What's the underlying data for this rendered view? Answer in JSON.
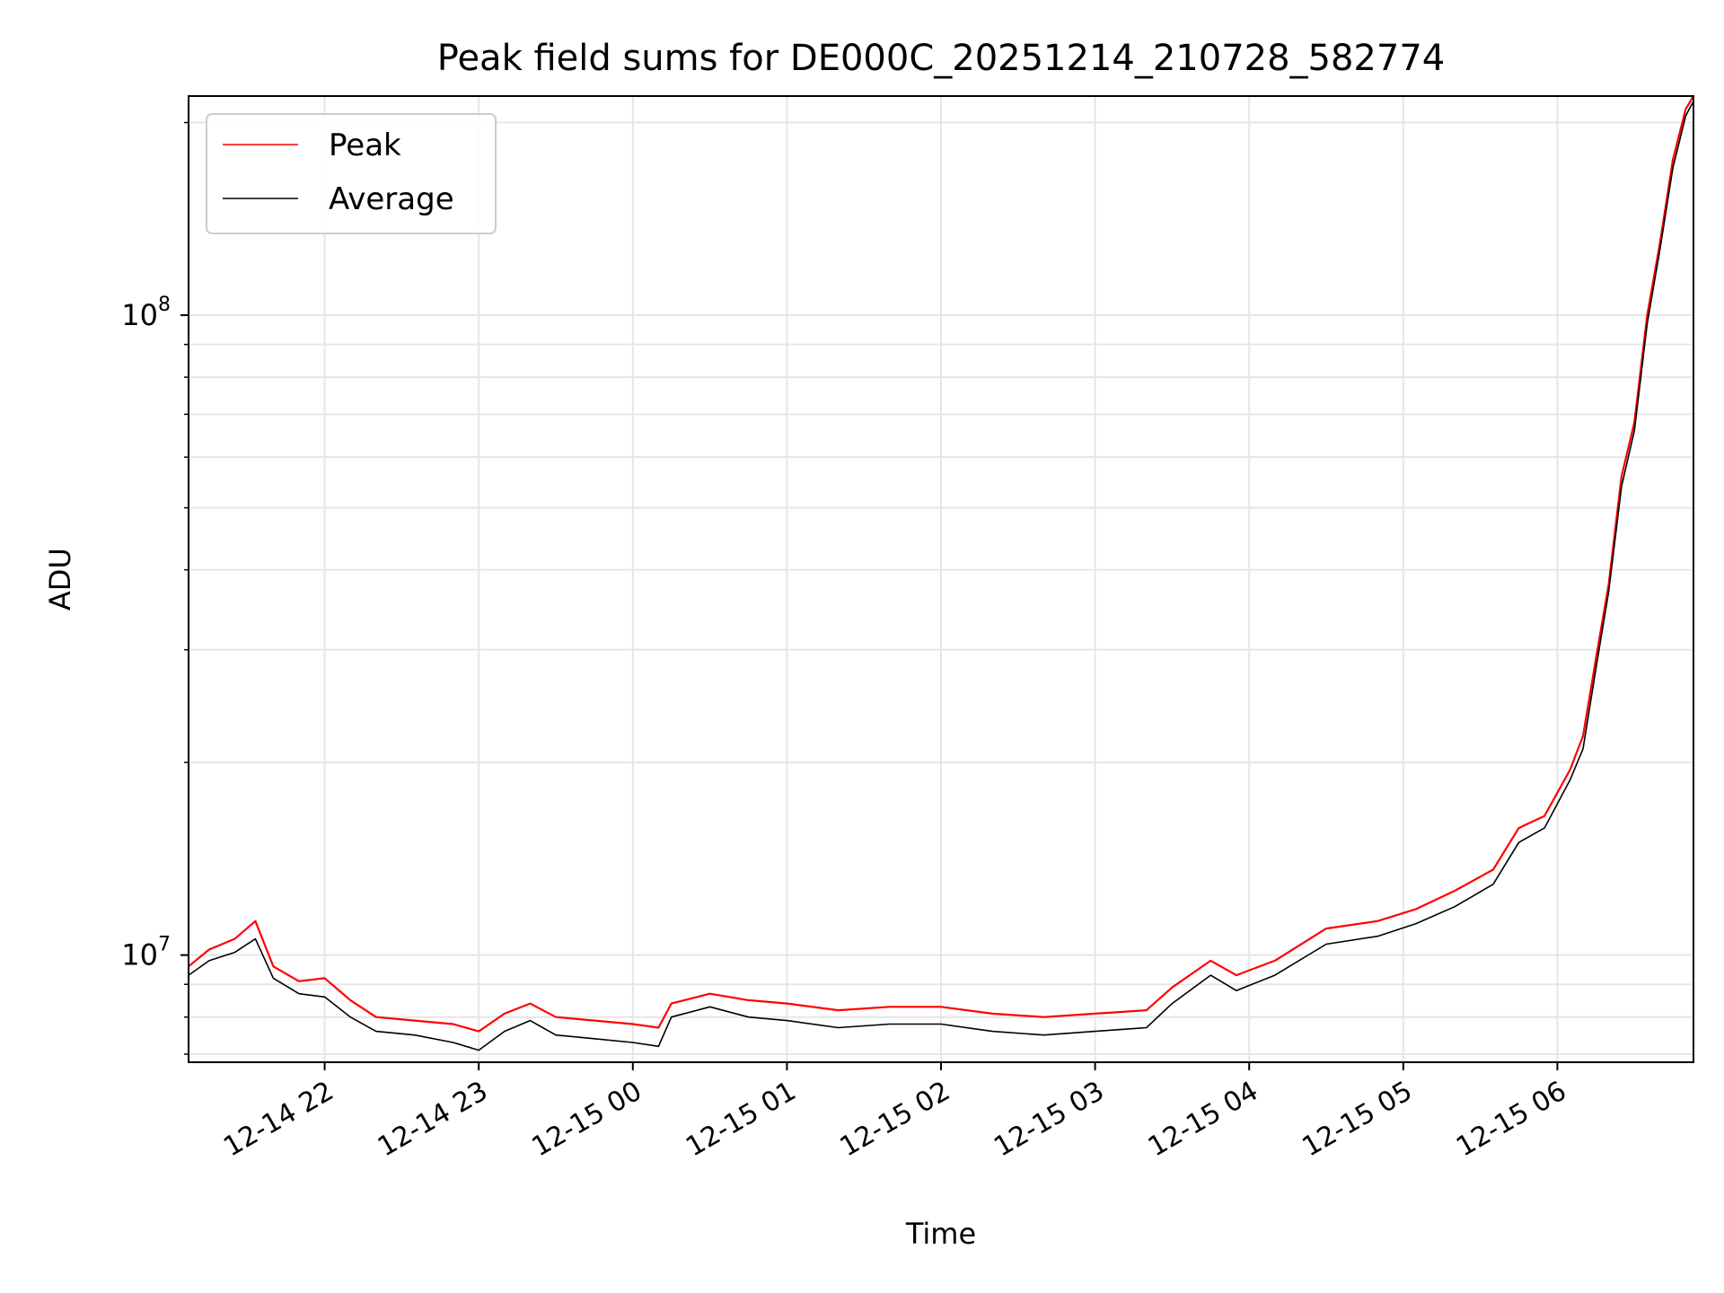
{
  "chart_data": {
    "type": "line",
    "title": "Peak field sums for DE000C_20251214_210728_582774",
    "xlabel": "Time",
    "ylabel": "ADU",
    "x_range": [
      "2025-12-14 21:07",
      "2025-12-15 06:53"
    ],
    "y_scale": "log",
    "ylim": [
      6800000,
      220000000
    ],
    "grid": true,
    "legend_position": "upper-left",
    "x_ticks": [
      {
        "t": "2025-12-14 22:00",
        "label": "12-14 22"
      },
      {
        "t": "2025-12-14 23:00",
        "label": "12-14 23"
      },
      {
        "t": "2025-12-15 00:00",
        "label": "12-15 00"
      },
      {
        "t": "2025-12-15 01:00",
        "label": "12-15 01"
      },
      {
        "t": "2025-12-15 02:00",
        "label": "12-15 02"
      },
      {
        "t": "2025-12-15 03:00",
        "label": "12-15 03"
      },
      {
        "t": "2025-12-15 04:00",
        "label": "12-15 04"
      },
      {
        "t": "2025-12-15 05:00",
        "label": "12-15 05"
      },
      {
        "t": "2025-12-15 06:00",
        "label": "12-15 06"
      }
    ],
    "y_major_ticks": [
      {
        "value": 10000000,
        "base": "10",
        "exp": "7"
      },
      {
        "value": 100000000,
        "base": "10",
        "exp": "8"
      }
    ],
    "y_minor_ticks": [
      7000000,
      8000000,
      9000000,
      20000000,
      30000000,
      40000000,
      50000000,
      60000000,
      70000000,
      80000000,
      90000000,
      200000000
    ],
    "series": [
      {
        "name": "Peak",
        "color": "#ff0000",
        "points": [
          [
            "2025-12-14 21:07",
            9600000.0
          ],
          [
            "2025-12-14 21:15",
            10200000.0
          ],
          [
            "2025-12-14 21:25",
            10600000.0
          ],
          [
            "2025-12-14 21:33",
            11300000.0
          ],
          [
            "2025-12-14 21:40",
            9600000.0
          ],
          [
            "2025-12-14 21:50",
            9100000.0
          ],
          [
            "2025-12-14 22:00",
            9200000.0
          ],
          [
            "2025-12-14 22:10",
            8500000.0
          ],
          [
            "2025-12-14 22:20",
            8000000.0
          ],
          [
            "2025-12-14 22:35",
            7900000.0
          ],
          [
            "2025-12-14 22:50",
            7800000.0
          ],
          [
            "2025-12-14 23:00",
            7600000.0
          ],
          [
            "2025-12-14 23:10",
            8100000.0
          ],
          [
            "2025-12-14 23:20",
            8400000.0
          ],
          [
            "2025-12-14 23:30",
            8000000.0
          ],
          [
            "2025-12-14 23:45",
            7900000.0
          ],
          [
            "2025-12-15 00:00",
            7800000.0
          ],
          [
            "2025-12-15 00:10",
            7700000.0
          ],
          [
            "2025-12-15 00:15",
            8400000.0
          ],
          [
            "2025-12-15 00:30",
            8700000.0
          ],
          [
            "2025-12-15 00:45",
            8500000.0
          ],
          [
            "2025-12-15 01:00",
            8400000.0
          ],
          [
            "2025-12-15 01:20",
            8200000.0
          ],
          [
            "2025-12-15 01:40",
            8300000.0
          ],
          [
            "2025-12-15 02:00",
            8300000.0
          ],
          [
            "2025-12-15 02:20",
            8100000.0
          ],
          [
            "2025-12-15 02:40",
            8000000.0
          ],
          [
            "2025-12-15 03:00",
            8100000.0
          ],
          [
            "2025-12-15 03:20",
            8200000.0
          ],
          [
            "2025-12-15 03:30",
            8900000.0
          ],
          [
            "2025-12-15 03:45",
            9800000.0
          ],
          [
            "2025-12-15 03:55",
            9300000.0
          ],
          [
            "2025-12-15 04:10",
            9800000.0
          ],
          [
            "2025-12-15 04:30",
            11000000.0
          ],
          [
            "2025-12-15 04:50",
            11300000.0
          ],
          [
            "2025-12-15 05:05",
            11800000.0
          ],
          [
            "2025-12-15 05:20",
            12600000.0
          ],
          [
            "2025-12-15 05:35",
            13600000.0
          ],
          [
            "2025-12-15 05:45",
            15800000.0
          ],
          [
            "2025-12-15 05:55",
            16500000.0
          ],
          [
            "2025-12-15 06:05",
            19500000.0
          ],
          [
            "2025-12-15 06:10",
            22000000.0
          ],
          [
            "2025-12-15 06:15",
            29000000.0
          ],
          [
            "2025-12-15 06:20",
            38000000.0
          ],
          [
            "2025-12-15 06:25",
            56000000.0
          ],
          [
            "2025-12-15 06:30",
            68000000.0
          ],
          [
            "2025-12-15 06:35",
            100000000.0
          ],
          [
            "2025-12-15 06:40",
            130000000.0
          ],
          [
            "2025-12-15 06:45",
            175000000.0
          ],
          [
            "2025-12-15 06:50",
            210000000.0
          ],
          [
            "2025-12-15 06:53",
            220000000.0
          ]
        ]
      },
      {
        "name": "Average",
        "color": "#000000",
        "points": [
          [
            "2025-12-14 21:07",
            9300000.0
          ],
          [
            "2025-12-14 21:15",
            9800000.0
          ],
          [
            "2025-12-14 21:25",
            10100000.0
          ],
          [
            "2025-12-14 21:33",
            10600000.0
          ],
          [
            "2025-12-14 21:40",
            9200000.0
          ],
          [
            "2025-12-14 21:50",
            8700000.0
          ],
          [
            "2025-12-14 22:00",
            8600000.0
          ],
          [
            "2025-12-14 22:10",
            8000000.0
          ],
          [
            "2025-12-14 22:20",
            7600000.0
          ],
          [
            "2025-12-14 22:35",
            7500000.0
          ],
          [
            "2025-12-14 22:50",
            7300000.0
          ],
          [
            "2025-12-14 23:00",
            7100000.0
          ],
          [
            "2025-12-14 23:10",
            7600000.0
          ],
          [
            "2025-12-14 23:20",
            7900000.0
          ],
          [
            "2025-12-14 23:30",
            7500000.0
          ],
          [
            "2025-12-14 23:45",
            7400000.0
          ],
          [
            "2025-12-15 00:00",
            7300000.0
          ],
          [
            "2025-12-15 00:10",
            7200000.0
          ],
          [
            "2025-12-15 00:15",
            8000000.0
          ],
          [
            "2025-12-15 00:30",
            8300000.0
          ],
          [
            "2025-12-15 00:45",
            8000000.0
          ],
          [
            "2025-12-15 01:00",
            7900000.0
          ],
          [
            "2025-12-15 01:20",
            7700000.0
          ],
          [
            "2025-12-15 01:40",
            7800000.0
          ],
          [
            "2025-12-15 02:00",
            7800000.0
          ],
          [
            "2025-12-15 02:20",
            7600000.0
          ],
          [
            "2025-12-15 02:40",
            7500000.0
          ],
          [
            "2025-12-15 03:00",
            7600000.0
          ],
          [
            "2025-12-15 03:20",
            7700000.0
          ],
          [
            "2025-12-15 03:30",
            8400000.0
          ],
          [
            "2025-12-15 03:45",
            9300000.0
          ],
          [
            "2025-12-15 03:55",
            8800000.0
          ],
          [
            "2025-12-15 04:10",
            9300000.0
          ],
          [
            "2025-12-15 04:30",
            10400000.0
          ],
          [
            "2025-12-15 04:50",
            10700000.0
          ],
          [
            "2025-12-15 05:05",
            11200000.0
          ],
          [
            "2025-12-15 05:20",
            11900000.0
          ],
          [
            "2025-12-15 05:35",
            12900000.0
          ],
          [
            "2025-12-15 05:45",
            15000000.0
          ],
          [
            "2025-12-15 05:55",
            15800000.0
          ],
          [
            "2025-12-15 06:05",
            18800000.0
          ],
          [
            "2025-12-15 06:10",
            21000000.0
          ],
          [
            "2025-12-15 06:15",
            28000000.0
          ],
          [
            "2025-12-15 06:20",
            37000000.0
          ],
          [
            "2025-12-15 06:25",
            54000000.0
          ],
          [
            "2025-12-15 06:30",
            66000000.0
          ],
          [
            "2025-12-15 06:35",
            97000000.0
          ],
          [
            "2025-12-15 06:40",
            127000000.0
          ],
          [
            "2025-12-15 06:45",
            170000000.0
          ],
          [
            "2025-12-15 06:50",
            205000000.0
          ],
          [
            "2025-12-15 06:53",
            216000000.0
          ]
        ]
      }
    ]
  }
}
